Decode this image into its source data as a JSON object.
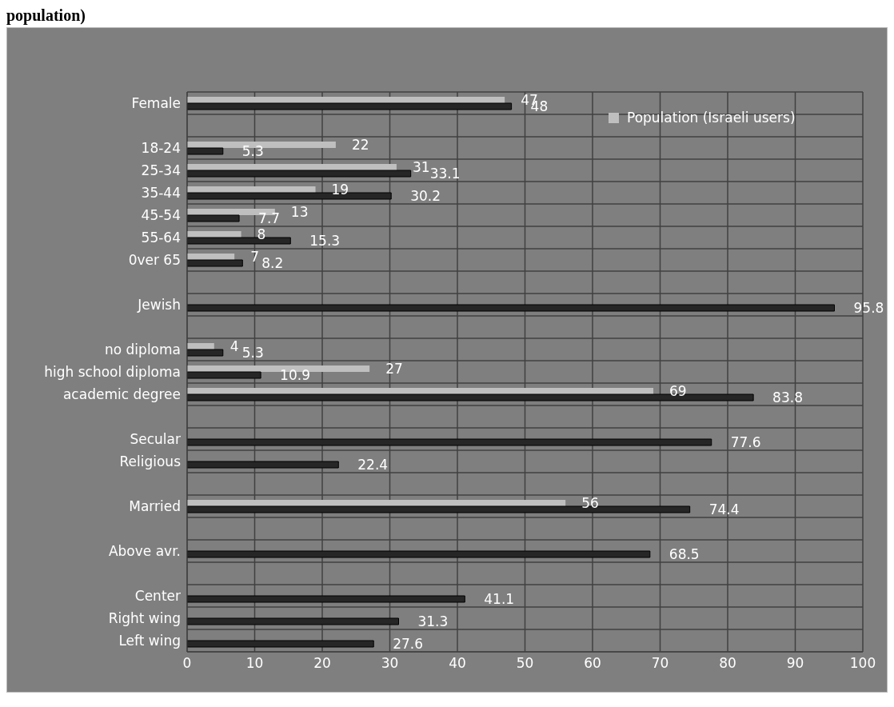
{
  "chart_data": {
    "type": "bar",
    "orientation": "horizontal",
    "title": "population)",
    "categories": [
      "Female",
      null,
      "18-24",
      "25-34",
      "35-44",
      "45-54",
      "55-64",
      "0ver 65",
      null,
      "Jewish",
      null,
      "no diploma",
      "high school diploma",
      "academic degree",
      null,
      "Secular",
      "Religious",
      null,
      "Married",
      null,
      "Above avr.",
      null,
      "Center",
      "Right wing",
      "Left wing"
    ],
    "series": [
      {
        "name": "Population (Israeli users)",
        "color": "#bfbfbf",
        "values": [
          47,
          null,
          22,
          31,
          19,
          13,
          8,
          7,
          null,
          null,
          null,
          4,
          27,
          69,
          null,
          null,
          null,
          null,
          56,
          null,
          null,
          null,
          null,
          null,
          null
        ]
      },
      {
        "color": "#262626",
        "values": [
          48,
          null,
          5.3,
          33.1,
          30.2,
          7.7,
          15.3,
          8.2,
          null,
          95.8,
          null,
          5.3,
          10.9,
          83.8,
          null,
          77.6,
          22.4,
          null,
          74.4,
          null,
          68.5,
          null,
          41.1,
          31.3,
          27.6
        ]
      }
    ],
    "xlim": [
      0,
      100
    ],
    "xticks": [
      0,
      10,
      20,
      30,
      40,
      50,
      60,
      70,
      80,
      90,
      100
    ],
    "grid": true,
    "legend": "top right",
    "data_labels": true
  }
}
